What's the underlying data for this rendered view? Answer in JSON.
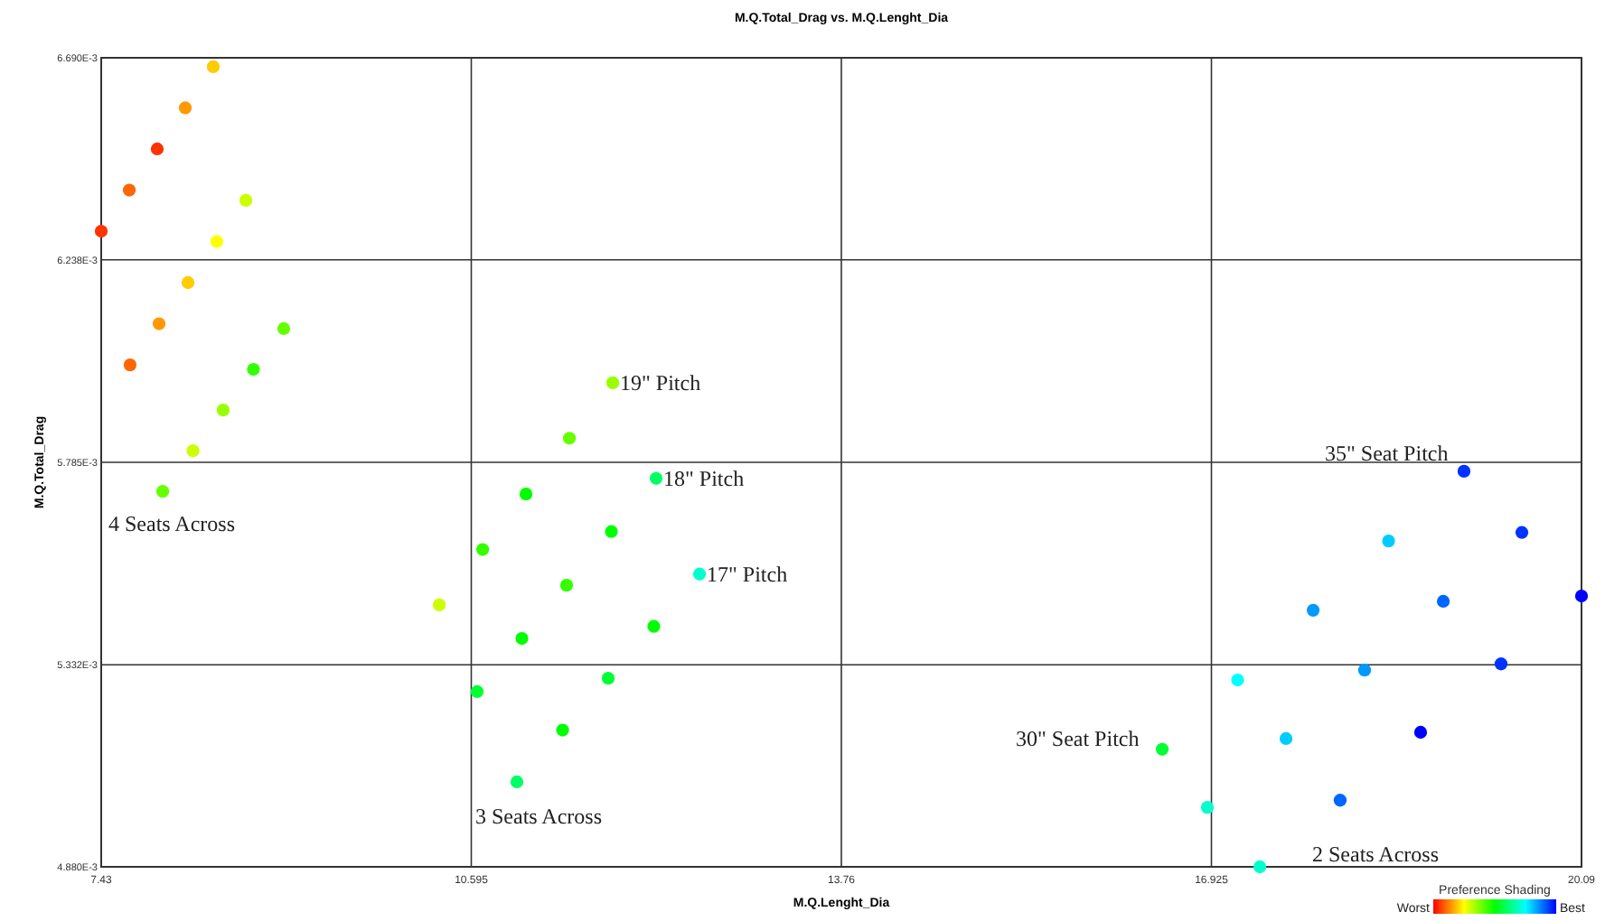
{
  "chart_data": {
    "type": "scatter",
    "title": "M.Q.Total_Drag vs. M.Q.Lenght_Dia",
    "xlabel": "M.Q.Lenght_Dia",
    "ylabel": "M.Q.Total_Drag",
    "clabel": "Preference Shading",
    "xlim": [
      7.43,
      20.09
    ],
    "xticks": [
      7.43,
      10.595,
      13.76,
      16.925,
      20.09
    ],
    "ylim": [
      0.00488,
      0.00669
    ],
    "yticks": [
      {
        "value": 0.00488,
        "label": "4.880E-3"
      },
      {
        "value": 0.005332,
        "label": "5.332E-3"
      },
      {
        "value": 0.005785,
        "label": "5.785E-3"
      },
      {
        "value": 0.006238,
        "label": "6.238E-3"
      },
      {
        "value": 0.00669,
        "label": "6.690E-3"
      }
    ],
    "grid": true,
    "marker": "circle",
    "series": [
      {
        "x": [
          7.43,
          7.67,
          7.909,
          8.149,
          8.388,
          7.677,
          7.925,
          8.172,
          8.419,
          8.667,
          7.956,
          8.215,
          8.473,
          8.732,
          8.991,
          10.321,
          10.692,
          11.063,
          11.434,
          11.805,
          10.645,
          11.028,
          11.41,
          11.793,
          12.176,
          10.985,
          11.376,
          11.766,
          12.156,
          12.547,
          16.504,
          17.149,
          17.795,
          18.44,
          19.085,
          16.89,
          17.563,
          18.235,
          18.908,
          19.58,
          17.339,
          18.026,
          18.714,
          19.402,
          20.09
        ],
        "values": [
          0.006302,
          0.006394,
          0.006486,
          0.006578,
          0.00667,
          0.006003,
          0.006095,
          0.006187,
          0.006279,
          0.006371,
          0.00572,
          0.005811,
          0.005902,
          0.005993,
          0.006084,
          0.005466,
          0.00559,
          0.005714,
          0.005839,
          0.005963,
          0.005272,
          0.005391,
          0.00551,
          0.00563,
          0.005749,
          0.00507,
          0.005186,
          0.005302,
          0.005418,
          0.005535,
          0.005143,
          0.005298,
          0.005454,
          0.005609,
          0.005765,
          0.005013,
          0.005167,
          0.00532,
          0.005474,
          0.005628,
          0.00488,
          0.005029,
          0.005181,
          0.005334,
          0.005486
        ],
        "colors": [
          "#ff3300",
          "#ff6600",
          "#ff3300",
          "#ff9900",
          "#ffcc00",
          "#ff6600",
          "#ff9900",
          "#ffcc00",
          "#ffff00",
          "#ccff00",
          "#66ff00",
          "#ccff00",
          "#99ff00",
          "#33ff00",
          "#66ff00",
          "#ccff00",
          "#33ff00",
          "#00ff00",
          "#66ff00",
          "#99ff00",
          "#00ff33",
          "#00ff00",
          "#33ff00",
          "#00ff00",
          "#00ff66",
          "#00ff66",
          "#00ff00",
          "#00ff33",
          "#00ff00",
          "#00ffcc",
          "#00ff33",
          "#00ffff",
          "#0099ff",
          "#00ccff",
          "#0033ff",
          "#00ffcc",
          "#00ccff",
          "#0099ff",
          "#0066ff",
          "#0033ff",
          "#00ffcc",
          "#0066ff",
          "#0000ff",
          "#0033ff",
          "#0000ff"
        ]
      }
    ],
    "annotations": [
      {
        "text": "19\" Pitch",
        "x": 11.805,
        "y": 0.005963
      },
      {
        "text": "18\" Pitch",
        "x": 12.176,
        "y": 0.005749
      },
      {
        "text": "17\" Pitch",
        "x": 12.547,
        "y": 0.005535
      },
      "4 Seats Across",
      "3 Seats Across",
      "35\" Seat Pitch",
      "30\" Seat Pitch",
      "2 Seats Across",
      "Worst",
      "Best"
    ]
  }
}
